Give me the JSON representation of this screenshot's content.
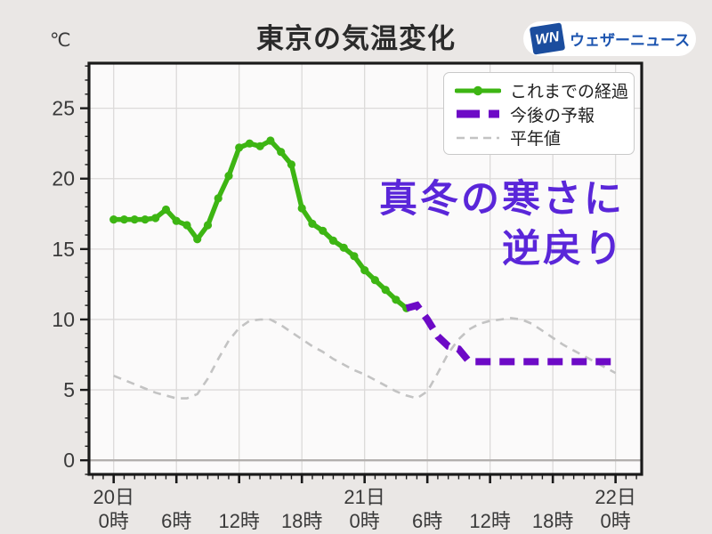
{
  "header": {
    "title": "東京の気温変化",
    "unit_label": "℃"
  },
  "logo": {
    "mark": "WN",
    "text": "ウェザーニュース"
  },
  "annotation": {
    "line1": "真冬の寒さに",
    "line2": "逆戻り",
    "color": "#5a26d9"
  },
  "colors": {
    "green": "#3db513",
    "purple": "#6d0ac6",
    "gray": "#c3c3c3",
    "grid": "#dcdad9",
    "zero_line": "#b3b0ae",
    "spine": "#1a1a1a",
    "tick_label": "#3a3a3a",
    "plot_bg": "#fbfafa",
    "page_bg": "#eae7e5",
    "logo_blue": "#1b4d9e"
  },
  "chart_data": {
    "type": "line",
    "title": "東京の気温変化",
    "xlabel": "",
    "ylabel": "℃",
    "grid": true,
    "legend_position": "top-right",
    "xlim_hours": [
      -2.36,
      50.5
    ],
    "ylim": [
      -1,
      28.2
    ],
    "y_ticks": [
      0,
      5,
      10,
      15,
      20,
      25
    ],
    "x_major_ticks_hours": [
      0,
      6,
      12,
      18,
      24,
      30,
      36,
      42,
      48
    ],
    "x_tick_labels": [
      {
        "hour": 0,
        "day": "20日",
        "time": "0時"
      },
      {
        "hour": 6,
        "time": "6時"
      },
      {
        "hour": 12,
        "time": "12時"
      },
      {
        "hour": 18,
        "time": "18時"
      },
      {
        "hour": 24,
        "day": "21日",
        "time": "0時"
      },
      {
        "hour": 30,
        "time": "6時"
      },
      {
        "hour": 36,
        "time": "12時"
      },
      {
        "hour": 42,
        "time": "18時"
      },
      {
        "hour": 48,
        "day": "22日",
        "time": "0時"
      }
    ],
    "series": [
      {
        "name": "これまでの経過",
        "style": "solid-with-dots",
        "color_key": "green",
        "start_hour": 0,
        "step_hours": 1,
        "values": [
          17.1,
          17.1,
          17.1,
          17.1,
          17.2,
          17.8,
          17.0,
          16.7,
          15.7,
          16.7,
          18.6,
          20.2,
          22.2,
          22.5,
          22.3,
          22.7,
          21.9,
          21.0,
          17.9,
          16.8,
          16.3,
          15.6,
          15.1,
          14.5,
          13.5,
          12.8,
          12.1,
          11.4,
          10.8
        ]
      },
      {
        "name": "今後の予報",
        "style": "dashed-thick",
        "color_key": "purple",
        "start_hour": 28,
        "step_hours": 1,
        "values": [
          10.8,
          11.0,
          10.0,
          8.8,
          8.1,
          7.9,
          7.0,
          7.0,
          7.0,
          7.0,
          7.0,
          7.0,
          7.0,
          7.0,
          7.0,
          7.0,
          7.0,
          7.0,
          7.0,
          7.0,
          7.0
        ]
      },
      {
        "name": "平年値",
        "style": "dashed-thin",
        "color_key": "gray",
        "start_hour": 0,
        "step_hours": 1,
        "values": [
          6.0,
          5.7,
          5.4,
          5.1,
          4.8,
          4.6,
          4.4,
          4.4,
          4.7,
          5.8,
          7.2,
          8.5,
          9.4,
          9.9,
          10.0,
          10.0,
          9.6,
          9.1,
          8.6,
          8.1,
          7.7,
          7.2,
          6.8,
          6.4,
          6.1,
          5.7,
          5.3,
          4.9,
          4.6,
          4.4,
          4.9,
          6.2,
          7.6,
          8.6,
          9.3,
          9.7,
          9.9,
          10.0,
          10.1,
          10.0,
          9.7,
          9.2,
          8.7,
          8.2,
          7.8,
          7.4,
          7.0,
          6.6,
          6.2
        ]
      }
    ]
  }
}
